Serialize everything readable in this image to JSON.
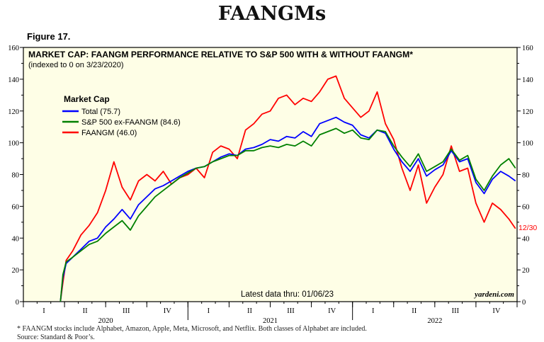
{
  "page": {
    "title": "FAANGMs",
    "figure_label": "Figure 17.",
    "footnote": "*  FAANGM stocks include Alphabet, Amazon, Apple, Meta, Microsoft, and Netflix. Both classes of Alphabet are included.",
    "source": "Source: Standard & Poor’s."
  },
  "colors": {
    "plot_bg": "#fefee6",
    "total": "#0000ff",
    "ex_faangm": "#008000",
    "faangm": "#ff0000",
    "end_label": "#ff0000"
  },
  "chart_data": {
    "type": "line",
    "title": "MARKET CAP: FAANGM PERFORMANCE RELATIVE TO S&P 500 WITH & WITHOUT FAANGM*",
    "subtitle": "(indexed to 0 on 3/23/2020)",
    "legend_title": "Market Cap",
    "legend_position": "top-left",
    "latest_data_note": "Latest data thru: 01/06/23",
    "credit": "yardeni.com",
    "end_label": "12/30",
    "ylim": [
      0,
      160
    ],
    "y_ticks": [
      0,
      20,
      40,
      60,
      80,
      100,
      120,
      140,
      160
    ],
    "x_range": [
      2020.0,
      2023.0
    ],
    "quarter_labels": [
      {
        "label": "I",
        "x": 2020.125
      },
      {
        "label": "II",
        "x": 2020.375
      },
      {
        "label": "III",
        "x": 2020.625
      },
      {
        "label": "IV",
        "x": 2020.875
      },
      {
        "label": "I",
        "x": 2021.125
      },
      {
        "label": "II",
        "x": 2021.375
      },
      {
        "label": "III",
        "x": 2021.625
      },
      {
        "label": "IV",
        "x": 2021.875
      },
      {
        "label": "I",
        "x": 2022.125
      },
      {
        "label": "II",
        "x": 2022.375
      },
      {
        "label": "III",
        "x": 2022.625
      },
      {
        "label": "IV",
        "x": 2022.875
      }
    ],
    "year_labels": [
      {
        "label": "2020",
        "x": 2020.5
      },
      {
        "label": "2021",
        "x": 2021.5
      },
      {
        "label": "2022",
        "x": 2022.5
      }
    ],
    "series": [
      {
        "name": "Total (75.7)",
        "color": "#0000ff",
        "x": [
          2020.225,
          2020.24,
          2020.26,
          2020.3,
          2020.35,
          2020.4,
          2020.45,
          2020.5,
          2020.55,
          2020.6,
          2020.65,
          2020.7,
          2020.75,
          2020.8,
          2020.85,
          2020.9,
          2020.95,
          2021.0,
          2021.05,
          2021.1,
          2021.15,
          2021.2,
          2021.25,
          2021.3,
          2021.35,
          2021.4,
          2021.45,
          2021.5,
          2021.55,
          2021.6,
          2021.65,
          2021.7,
          2021.75,
          2021.8,
          2021.85,
          2021.9,
          2021.95,
          2022.0,
          2022.05,
          2022.1,
          2022.15,
          2022.2,
          2022.25,
          2022.3,
          2022.35,
          2022.4,
          2022.45,
          2022.5,
          2022.55,
          2022.6,
          2022.65,
          2022.7,
          2022.75,
          2022.8,
          2022.85,
          2022.9,
          2022.95,
          2022.99
        ],
        "values": [
          0,
          15,
          24,
          28,
          33,
          38,
          40,
          47,
          52,
          58,
          52,
          61,
          66,
          71,
          73,
          76,
          79,
          82,
          84,
          85,
          88,
          91,
          93,
          92,
          96,
          97,
          99,
          102,
          101,
          104,
          103,
          107,
          104,
          112,
          114,
          116,
          113,
          111,
          105,
          103,
          108,
          106,
          96,
          88,
          82,
          90,
          79,
          83,
          86,
          95,
          88,
          90,
          75,
          68,
          77,
          82,
          79,
          76
        ]
      },
      {
        "name": "S&P 500 ex-FAANGM (84.6)",
        "color": "#008000",
        "x": [
          2020.225,
          2020.24,
          2020.26,
          2020.3,
          2020.35,
          2020.4,
          2020.45,
          2020.5,
          2020.55,
          2020.6,
          2020.65,
          2020.7,
          2020.75,
          2020.8,
          2020.85,
          2020.9,
          2020.95,
          2021.0,
          2021.05,
          2021.1,
          2021.15,
          2021.2,
          2021.25,
          2021.3,
          2021.35,
          2021.4,
          2021.45,
          2021.5,
          2021.55,
          2021.6,
          2021.65,
          2021.7,
          2021.75,
          2021.8,
          2021.85,
          2021.9,
          2021.95,
          2022.0,
          2022.05,
          2022.1,
          2022.15,
          2022.2,
          2022.25,
          2022.3,
          2022.35,
          2022.4,
          2022.45,
          2022.5,
          2022.55,
          2022.6,
          2022.65,
          2022.7,
          2022.75,
          2022.8,
          2022.85,
          2022.9,
          2022.95,
          2022.99
        ],
        "values": [
          0,
          17,
          25,
          28,
          32,
          36,
          38,
          43,
          47,
          51,
          45,
          54,
          60,
          66,
          70,
          74,
          78,
          81,
          84,
          85,
          88,
          90,
          92,
          92,
          95,
          95,
          97,
          98,
          97,
          99,
          98,
          101,
          98,
          105,
          107,
          109,
          106,
          108,
          103,
          102,
          108,
          107,
          98,
          91,
          85,
          93,
          82,
          85,
          88,
          96,
          89,
          92,
          77,
          70,
          79,
          86,
          90,
          84
        ]
      },
      {
        "name": "FAANGM (46.0)",
        "color": "#ff0000",
        "x": [
          2020.225,
          2020.24,
          2020.26,
          2020.3,
          2020.35,
          2020.4,
          2020.45,
          2020.5,
          2020.55,
          2020.6,
          2020.65,
          2020.7,
          2020.75,
          2020.8,
          2020.85,
          2020.9,
          2020.95,
          2021.0,
          2021.05,
          2021.1,
          2021.15,
          2021.2,
          2021.25,
          2021.3,
          2021.35,
          2021.4,
          2021.45,
          2021.5,
          2021.55,
          2021.6,
          2021.65,
          2021.7,
          2021.75,
          2021.8,
          2021.85,
          2021.9,
          2021.95,
          2022.0,
          2022.05,
          2022.1,
          2022.15,
          2022.2,
          2022.25,
          2022.3,
          2022.35,
          2022.4,
          2022.45,
          2022.5,
          2022.55,
          2022.6,
          2022.65,
          2022.7,
          2022.75,
          2022.8,
          2022.85,
          2022.9,
          2022.95,
          2022.99
        ],
        "values": [
          0,
          12,
          26,
          32,
          42,
          48,
          56,
          70,
          88,
          72,
          64,
          76,
          80,
          76,
          82,
          74,
          78,
          80,
          84,
          78,
          94,
          98,
          96,
          90,
          108,
          112,
          118,
          120,
          128,
          130,
          124,
          128,
          126,
          132,
          140,
          142,
          128,
          122,
          116,
          120,
          132,
          112,
          102,
          84,
          70,
          86,
          62,
          72,
          80,
          98,
          82,
          84,
          62,
          50,
          62,
          58,
          52,
          46
        ]
      }
    ]
  }
}
